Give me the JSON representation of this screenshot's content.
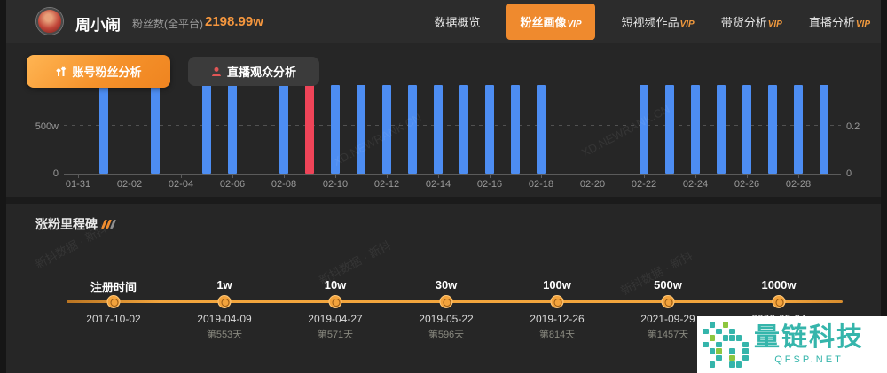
{
  "header": {
    "name": "周小闹",
    "fans_label": "粉丝数(全平台)",
    "fans_count": "2198.99w",
    "vip_suffix": "VIP",
    "tabs": [
      {
        "label": "数据概览",
        "vip": false,
        "active": false
      },
      {
        "label": "粉丝画像",
        "vip": true,
        "active": true
      },
      {
        "label": "短视频作品",
        "vip": true,
        "active": false
      },
      {
        "label": "带货分析",
        "vip": true,
        "active": false
      },
      {
        "label": "直播分析",
        "vip": true,
        "active": false
      }
    ]
  },
  "toolbar": {
    "fan_analysis_label": "账号粉丝分析",
    "live_audience_label": "直播观众分析"
  },
  "chart_data": {
    "type": "bar",
    "title": "账号粉丝分析",
    "categories": [
      "02-01",
      "02-03",
      "02-05",
      "02-06",
      "02-08",
      "02-09",
      "02-10",
      "02-11",
      "02-12",
      "02-13",
      "02-14",
      "02-15",
      "02-16",
      "02-17",
      "02-18",
      "02-22",
      "02-23",
      "02-24",
      "02-25",
      "02-26",
      "02-27",
      "02-28",
      "03-01"
    ],
    "values": [
      940,
      940,
      940,
      940,
      940,
      940,
      940,
      940,
      940,
      940,
      940,
      940,
      940,
      940,
      940,
      940,
      940,
      940,
      940,
      940,
      940,
      940,
      940
    ],
    "highlight_category": "02-09",
    "x_ticks": [
      "01-31",
      "02-02",
      "02-04",
      "02-06",
      "02-08",
      "02-10",
      "02-12",
      "02-14",
      "02-16",
      "02-18",
      "02-20",
      "02-22",
      "02-24",
      "02-26",
      "02-28"
    ],
    "left_axis_ticks": [
      {
        "label": "500w",
        "value": 500
      },
      {
        "label": "0",
        "value": 0
      }
    ],
    "right_axis_ticks": [
      {
        "label": "0.2",
        "value": 0.2
      },
      {
        "label": "0",
        "value": 0
      }
    ],
    "ylabel": "",
    "xlabel": "",
    "ylim_left": [
      0,
      940
    ],
    "ylim_right": [
      0,
      0.4
    ],
    "grid": "dashed-500w",
    "legend_position": "none",
    "bar_color": "#4d8df2",
    "highlight_color": "#ef4458"
  },
  "milestones": {
    "title": "涨粉里程碑",
    "items": [
      {
        "label": "注册时间",
        "date": "2017-10-02",
        "day": ""
      },
      {
        "label": "1w",
        "date": "2019-04-09",
        "day": "第553天"
      },
      {
        "label": "10w",
        "date": "2019-04-27",
        "day": "第571天"
      },
      {
        "label": "30w",
        "date": "2019-05-22",
        "day": "第596天"
      },
      {
        "label": "100w",
        "date": "2019-12-26",
        "day": "第814天"
      },
      {
        "label": "500w",
        "date": "2021-09-29",
        "day": "第1457天"
      },
      {
        "label": "1000w",
        "date": "2022-03-24",
        "day": ""
      }
    ]
  },
  "watermark": {
    "brand": "量链科技",
    "site": "QFSP.NET",
    "diagonal_site": "XD.NEWRANK.CN",
    "diagonal_brand": "新抖数据 · 新抖"
  },
  "colors": {
    "accent_orange": "#ef8a2e",
    "fans_orange": "#f6973e",
    "bar_blue": "#4d8df2",
    "bar_red": "#ef4458",
    "timeline_orange": "#f2a53d",
    "brand_teal": "#35b5ab",
    "brand_green": "#8dc63f"
  }
}
